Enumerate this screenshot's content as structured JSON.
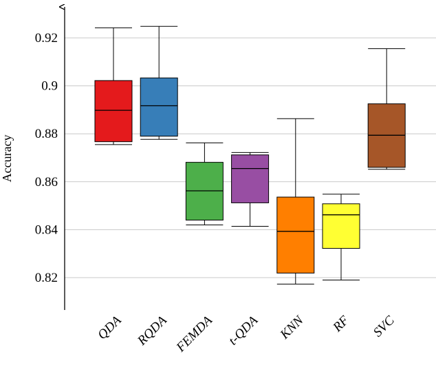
{
  "chart_data": {
    "type": "box",
    "ylabel": "Accuracy",
    "xlabel": "",
    "ylim": [
      0.806,
      0.935
    ],
    "yticks": [
      0.82,
      0.84,
      0.86,
      0.88,
      0.9,
      0.92
    ],
    "ytick_labels": [
      "0.82",
      "0.84",
      "0.86",
      "0.88",
      "0.9",
      "0.92"
    ],
    "grid": true,
    "categories": [
      "QDA",
      "RQDA",
      "FEMDA",
      "t-QDA",
      "KNN",
      "RF",
      "SVC"
    ],
    "boxes": [
      {
        "name": "QDA",
        "whisker_low": 0.8755,
        "q1": 0.8767,
        "median": 0.8898,
        "q3": 0.9022,
        "whisker_high": 0.9242,
        "color": "#e41a1c"
      },
      {
        "name": "RQDA",
        "whisker_low": 0.8777,
        "q1": 0.879,
        "median": 0.8917,
        "q3": 0.9033,
        "whisker_high": 0.9248,
        "color": "#377eb8"
      },
      {
        "name": "FEMDA",
        "whisker_low": 0.842,
        "q1": 0.844,
        "median": 0.8562,
        "q3": 0.8681,
        "whisker_high": 0.8762,
        "color": "#4daf4a"
      },
      {
        "name": "t-QDA",
        "whisker_low": 0.8414,
        "q1": 0.8512,
        "median": 0.8655,
        "q3": 0.8712,
        "whisker_high": 0.8722,
        "color": "#984ea3"
      },
      {
        "name": "KNN",
        "whisker_low": 0.8173,
        "q1": 0.8219,
        "median": 0.8393,
        "q3": 0.8536,
        "whisker_high": 0.8863,
        "color": "#ff7f00"
      },
      {
        "name": "RF",
        "whisker_low": 0.819,
        "q1": 0.8322,
        "median": 0.8462,
        "q3": 0.8508,
        "whisker_high": 0.8548,
        "color": "#ffff33"
      },
      {
        "name": "SVC",
        "whisker_low": 0.8652,
        "q1": 0.866,
        "median": 0.8794,
        "q3": 0.8925,
        "whisker_high": 0.9155,
        "color": "#a65628"
      }
    ]
  }
}
